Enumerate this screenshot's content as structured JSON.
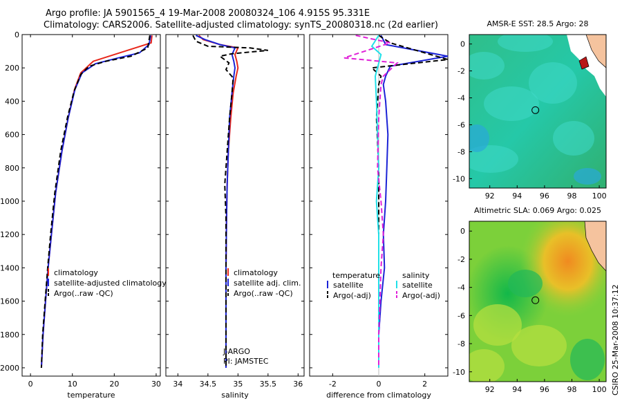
{
  "header": {
    "line1": "Argo profile: JA 5901565_4 19-Mar-2008 20080324_106 4.915S 95.331E",
    "line2": "Climatology: CARS2006. Satellite-adjusted climatology: synTS_20080318.nc (2d earlier)"
  },
  "side_label": "CSIRO 25-Mar-2008 10:37:12",
  "colors": {
    "red": "#e8261a",
    "blue": "#1a22d6",
    "black": "#000000",
    "cyan": "#20e0e8",
    "magenta": "#e020d8",
    "land": "#f5c39e"
  },
  "chart_data": [
    {
      "type": "line",
      "id": "temperature",
      "xlabel": "temperature",
      "xlim": [
        -2,
        31
      ],
      "ylim": [
        0,
        2050
      ],
      "xticks": [
        0,
        10,
        20,
        30
      ],
      "yticks": [
        0,
        200,
        400,
        600,
        800,
        1000,
        1200,
        1400,
        1600,
        1800,
        2000
      ],
      "legend": [
        "climatology",
        "satellite-adjusted climatology",
        "Argo(..raw -QC)"
      ],
      "series": [
        {
          "name": "climatology",
          "color": "red",
          "dash": false,
          "x": [
            29.0,
            28.8,
            25.0,
            20.0,
            15.0,
            12.0,
            10.5,
            9.0,
            7.5,
            6.0,
            5.0,
            4.2,
            3.6,
            3.0,
            2.6
          ],
          "y": [
            5,
            50,
            80,
            120,
            160,
            230,
            330,
            500,
            700,
            950,
            1200,
            1400,
            1600,
            1800,
            2000
          ]
        },
        {
          "name": "satellite-adjusted climatology",
          "color": "blue",
          "dash": false,
          "x": [
            28.7,
            28.3,
            26.0,
            21.0,
            15.5,
            12.3,
            10.6,
            9.0,
            7.5,
            6.0,
            5.0,
            4.2,
            3.6,
            3.0,
            2.6
          ],
          "y": [
            5,
            60,
            110,
            140,
            175,
            230,
            330,
            500,
            700,
            950,
            1200,
            1400,
            1600,
            1800,
            2000
          ]
        },
        {
          "name": "Argo(..raw -QC)",
          "color": "black",
          "dash": true,
          "x": [
            28.5,
            28.0,
            24.0,
            18.0,
            14.0,
            12.0,
            10.4,
            8.8,
            7.2,
            5.8,
            4.8,
            4.1,
            3.5,
            2.9,
            2.6
          ],
          "y": [
            5,
            80,
            130,
            160,
            190,
            240,
            340,
            500,
            700,
            950,
            1200,
            1400,
            1600,
            1800,
            2000
          ]
        }
      ]
    },
    {
      "type": "line",
      "id": "salinity",
      "xlabel": "salinity",
      "xlim": [
        33.8,
        36.1
      ],
      "ylim": [
        0,
        2050
      ],
      "xticks": [
        34,
        34.5,
        35,
        35.5,
        36
      ],
      "yticks": [
        0,
        200,
        400,
        600,
        800,
        1000,
        1200,
        1400,
        1600,
        1800,
        2000
      ],
      "legend": [
        "climatology",
        "satellite adj. clim.",
        "Argo(..raw -QC)"
      ],
      "annotations": [
        "J-ARGO",
        "PI: JAMSTEC"
      ],
      "series": [
        {
          "name": "climatology",
          "color": "red",
          "dash": false,
          "x": [
            34.35,
            34.42,
            34.7,
            35.0,
            34.95,
            34.98,
            35.0,
            34.97,
            34.92,
            34.88,
            34.84,
            34.82,
            34.81,
            34.8,
            34.8,
            34.8
          ],
          "y": [
            5,
            30,
            60,
            80,
            120,
            160,
            200,
            250,
            350,
            500,
            700,
            900,
            1100,
            1400,
            1700,
            2000
          ]
        },
        {
          "name": "satellite adj. clim.",
          "color": "blue",
          "dash": false,
          "x": [
            34.3,
            34.45,
            34.7,
            34.95,
            34.9,
            34.93,
            34.95,
            34.93,
            34.9,
            34.86,
            34.84,
            34.82,
            34.81,
            34.8,
            34.8,
            34.8
          ],
          "y": [
            5,
            30,
            60,
            80,
            120,
            160,
            200,
            250,
            350,
            500,
            700,
            900,
            1100,
            1400,
            1700,
            2000
          ]
        },
        {
          "name": "Argo(..raw -QC)",
          "color": "black",
          "dash": true,
          "x": [
            34.25,
            34.3,
            34.5,
            35.2,
            35.5,
            34.9,
            34.7,
            34.85,
            34.8,
            34.92,
            34.9,
            34.86,
            34.82,
            34.78,
            34.8,
            34.8,
            34.8,
            34.8
          ],
          "y": [
            5,
            40,
            70,
            80,
            95,
            115,
            130,
            170,
            210,
            260,
            350,
            500,
            700,
            900,
            1100,
            1400,
            1700,
            2000
          ]
        }
      ]
    },
    {
      "type": "line",
      "id": "difference",
      "xlabel": "difference from climatology",
      "xlim": [
        -3,
        3
      ],
      "ylim": [
        0,
        2050
      ],
      "xticks": [
        -2,
        0,
        2
      ],
      "yticks": [
        0,
        200,
        400,
        600,
        800,
        1000,
        1200,
        1400,
        1600,
        1800,
        2000
      ],
      "legend": [
        "temperature",
        "satellite",
        "Argo(-adj)",
        "salinity",
        "satellite",
        "Argo(-adj)"
      ],
      "series": [
        {
          "name": "temperature satellite",
          "color": "blue",
          "dash": false,
          "x": [
            0.1,
            0.3,
            3.0,
            0.5,
            0.3,
            0.2,
            0.3,
            0.4,
            0.35,
            0.3,
            0.2,
            0.25,
            0.1,
            0.0,
            0.0
          ],
          "y": [
            5,
            60,
            130,
            190,
            250,
            300,
            400,
            600,
            800,
            1000,
            1200,
            1400,
            1600,
            1800,
            2000
          ]
        },
        {
          "name": "temperature Argo(-adj)",
          "color": "black",
          "dash": true,
          "x": [
            0.0,
            0.5,
            3.0,
            -0.3,
            0.1,
            0.0,
            -0.1,
            0.0,
            0.0,
            0.0,
            0.0,
            0.0,
            0.0
          ],
          "y": [
            5,
            50,
            150,
            200,
            250,
            300,
            500,
            800,
            1000,
            1200,
            1400,
            1800,
            2000
          ]
        },
        {
          "name": "salinity satellite",
          "color": "cyan",
          "dash": false,
          "x": [
            0.0,
            -0.3,
            0.1,
            -0.15,
            -0.1,
            -0.05,
            0.0,
            -0.1,
            -0.05,
            0.0,
            0.0,
            0.0,
            0.0,
            0.0
          ],
          "y": [
            5,
            70,
            120,
            250,
            400,
            600,
            800,
            1000,
            1100,
            1200,
            1400,
            1600,
            1800,
            2000
          ]
        },
        {
          "name": "salinity Argo(-adj)",
          "color": "magenta",
          "dash": true,
          "x": [
            -1.0,
            0.5,
            -1.5,
            0.8,
            0.2,
            0.1,
            0.0,
            -0.05,
            0.1,
            0.2,
            0.1,
            0.0,
            0.0
          ],
          "y": [
            5,
            50,
            140,
            170,
            250,
            300,
            500,
            800,
            1000,
            1200,
            1400,
            1800,
            2000
          ]
        }
      ]
    },
    {
      "type": "heatmap",
      "id": "sst_map",
      "title": "AMSR-E SST: 28.5 Argo: 28",
      "xlim": [
        90.5,
        100.5
      ],
      "ylim": [
        -10.7,
        0.7
      ],
      "xticks": [
        92,
        94,
        96,
        98,
        100
      ],
      "yticks": [
        0,
        -2,
        -4,
        -6,
        -8,
        -10
      ],
      "argo_position": {
        "lon": 95.331,
        "lat": -4.915
      }
    },
    {
      "type": "heatmap",
      "id": "sla_map",
      "title": "Altimetric SLA: 0.069 Argo: 0.025",
      "xlim": [
        90.5,
        100.5
      ],
      "ylim": [
        -10.7,
        0.7
      ],
      "xticks": [
        92,
        94,
        96,
        98,
        100
      ],
      "yticks": [
        0,
        -2,
        -4,
        -6,
        -8,
        -10
      ],
      "argo_position": {
        "lon": 95.331,
        "lat": -4.915
      }
    }
  ]
}
